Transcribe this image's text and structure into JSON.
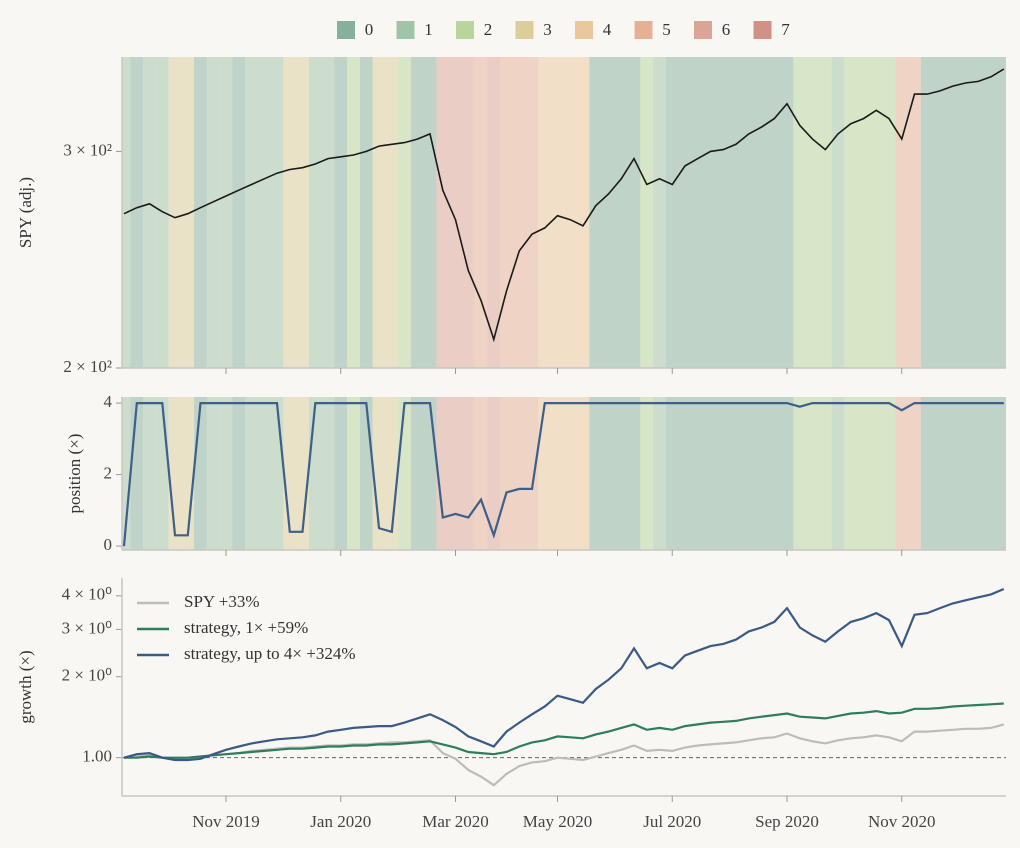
{
  "chart_data": [
    {
      "type": "line",
      "ylabel": "SPY (adj.)",
      "log": true,
      "ylim": [
        200,
        358
      ],
      "yticks": [
        {
          "value": 200,
          "label": "2 × 10²"
        },
        {
          "value": 300,
          "label": "3 × 10²"
        }
      ],
      "color": "#1a1a1a",
      "values": [
        267,
        270,
        272,
        268,
        265,
        267,
        270,
        273,
        276,
        279,
        282,
        285,
        288,
        290,
        291,
        293,
        296,
        297,
        298,
        300,
        303,
        304,
        305,
        307,
        310,
        279,
        264,
        240,
        227,
        211,
        231,
        249,
        257,
        260,
        266,
        264,
        261,
        271,
        277,
        285,
        296,
        282,
        285,
        282,
        292,
        296,
        300,
        301,
        304,
        310,
        314,
        319,
        328,
        315,
        307,
        301,
        310,
        316,
        319,
        324,
        319,
        307,
        334,
        334,
        336,
        339,
        341,
        342,
        345,
        350
      ],
      "regime_legend": [
        {
          "name": "0",
          "color": "#85b09b"
        },
        {
          "name": "1",
          "color": "#9fc4a8"
        },
        {
          "name": "2",
          "color": "#b7d59c"
        },
        {
          "name": "3",
          "color": "#dccd9a"
        },
        {
          "name": "4",
          "color": "#ebc79c"
        },
        {
          "name": "5",
          "color": "#e6b094"
        },
        {
          "name": "6",
          "color": "#dca496"
        },
        {
          "name": "7",
          "color": "#d09186"
        }
      ],
      "regime": [
        1,
        0,
        1,
        1,
        3,
        3,
        0,
        1,
        1,
        0,
        1,
        1,
        1,
        3,
        3,
        1,
        1,
        0,
        2,
        0,
        3,
        3,
        2,
        0,
        0,
        6,
        6,
        6,
        5,
        6,
        5,
        5,
        5,
        4,
        4,
        4,
        4,
        0,
        0,
        0,
        0,
        2,
        1,
        0,
        0,
        0,
        0,
        0,
        0,
        0,
        0,
        0,
        0,
        2,
        2,
        2,
        1,
        2,
        2,
        2,
        2,
        5,
        5,
        0,
        0,
        0,
        0,
        0,
        0,
        0
      ]
    },
    {
      "type": "line",
      "ylabel": "position (×)",
      "log": false,
      "ylim": [
        -0.11,
        4.17
      ],
      "yticks": [
        0,
        2,
        4
      ],
      "color": "#3d5f8a",
      "values": [
        0,
        4,
        4,
        4,
        0.3,
        0.3,
        4,
        4,
        4,
        4,
        4,
        4,
        4,
        0.4,
        0.4,
        4,
        4,
        4,
        4,
        4,
        0.5,
        0.4,
        4,
        4,
        4,
        0.8,
        0.9,
        0.8,
        1.3,
        0.3,
        1.5,
        1.6,
        1.6,
        4,
        4,
        4,
        4,
        4,
        4,
        4,
        4,
        4,
        4,
        4,
        4,
        4,
        4,
        4,
        4,
        4,
        4,
        4,
        4,
        3.9,
        4,
        4,
        4,
        4,
        4,
        4,
        4,
        3.8,
        4,
        4,
        4,
        4,
        4,
        4,
        4,
        4
      ]
    },
    {
      "type": "line",
      "ylabel": "growth (×)",
      "log": true,
      "ylim": [
        0.72,
        4.66
      ],
      "yticks": [
        {
          "value": 1,
          "label": "1.00"
        },
        {
          "value": 2,
          "label": "2 × 10⁰"
        },
        {
          "value": 3,
          "label": "3 × 10⁰"
        },
        {
          "value": 4,
          "label": "4 × 10⁰"
        }
      ],
      "hline": 1,
      "legend": "upper left",
      "categories": [
        null,
        null,
        null,
        null,
        null,
        null,
        null,
        null,
        "Nov 2019",
        null,
        null,
        null,
        null,
        null,
        null,
        null,
        null,
        "Jan 2020",
        null,
        null,
        null,
        null,
        null,
        null,
        null,
        null,
        "Mar 2020",
        null,
        null,
        null,
        null,
        null,
        null,
        null,
        "May 2020",
        null,
        null,
        null,
        null,
        null,
        null,
        null,
        null,
        "Jul 2020",
        null,
        null,
        null,
        null,
        null,
        null,
        null,
        null,
        "Sep 2020",
        null,
        null,
        null,
        null,
        null,
        null,
        null,
        null,
        "Nov 2020",
        null,
        null,
        null,
        null,
        null,
        null,
        null,
        null
      ],
      "series": [
        {
          "name": "SPY  +33%",
          "color": "#bdbcb8",
          "values": [
            1.0,
            1.01,
            1.02,
            1.0,
            0.99,
            1.0,
            1.01,
            1.02,
            1.03,
            1.04,
            1.06,
            1.07,
            1.08,
            1.09,
            1.09,
            1.1,
            1.11,
            1.11,
            1.12,
            1.12,
            1.13,
            1.14,
            1.14,
            1.15,
            1.16,
            1.04,
            0.99,
            0.9,
            0.85,
            0.79,
            0.87,
            0.93,
            0.96,
            0.97,
            1.0,
            0.99,
            0.98,
            1.01,
            1.04,
            1.07,
            1.11,
            1.06,
            1.07,
            1.06,
            1.09,
            1.11,
            1.12,
            1.13,
            1.14,
            1.16,
            1.18,
            1.19,
            1.23,
            1.18,
            1.15,
            1.13,
            1.16,
            1.18,
            1.19,
            1.21,
            1.19,
            1.15,
            1.25,
            1.25,
            1.26,
            1.27,
            1.28,
            1.28,
            1.29,
            1.33
          ]
        },
        {
          "name": "strategy, 1×  +59%",
          "color": "#2e7d5b",
          "values": [
            1.0,
            1.0,
            1.01,
            1.0,
            1.0,
            1.0,
            1.01,
            1.02,
            1.03,
            1.04,
            1.05,
            1.06,
            1.07,
            1.08,
            1.08,
            1.09,
            1.1,
            1.1,
            1.11,
            1.11,
            1.12,
            1.12,
            1.13,
            1.14,
            1.15,
            1.12,
            1.09,
            1.05,
            1.04,
            1.03,
            1.05,
            1.1,
            1.14,
            1.16,
            1.2,
            1.19,
            1.18,
            1.22,
            1.25,
            1.29,
            1.33,
            1.27,
            1.29,
            1.27,
            1.31,
            1.33,
            1.35,
            1.36,
            1.37,
            1.4,
            1.42,
            1.44,
            1.46,
            1.42,
            1.41,
            1.4,
            1.43,
            1.46,
            1.47,
            1.49,
            1.46,
            1.47,
            1.52,
            1.52,
            1.53,
            1.55,
            1.56,
            1.57,
            1.58,
            1.59
          ]
        },
        {
          "name": "strategy, up to 4×  +324%",
          "color": "#3a5a85",
          "values": [
            1.0,
            1.03,
            1.04,
            1.0,
            0.98,
            0.98,
            0.99,
            1.03,
            1.07,
            1.1,
            1.13,
            1.15,
            1.17,
            1.18,
            1.19,
            1.21,
            1.25,
            1.27,
            1.29,
            1.3,
            1.31,
            1.31,
            1.35,
            1.4,
            1.45,
            1.38,
            1.3,
            1.2,
            1.15,
            1.1,
            1.25,
            1.35,
            1.45,
            1.55,
            1.7,
            1.65,
            1.6,
            1.8,
            1.95,
            2.15,
            2.55,
            2.15,
            2.25,
            2.15,
            2.4,
            2.5,
            2.6,
            2.65,
            2.75,
            2.95,
            3.05,
            3.2,
            3.6,
            3.05,
            2.85,
            2.7,
            2.95,
            3.2,
            3.3,
            3.45,
            3.25,
            2.6,
            3.4,
            3.45,
            3.6,
            3.75,
            3.85,
            3.95,
            4.05,
            4.24
          ]
        }
      ]
    }
  ]
}
